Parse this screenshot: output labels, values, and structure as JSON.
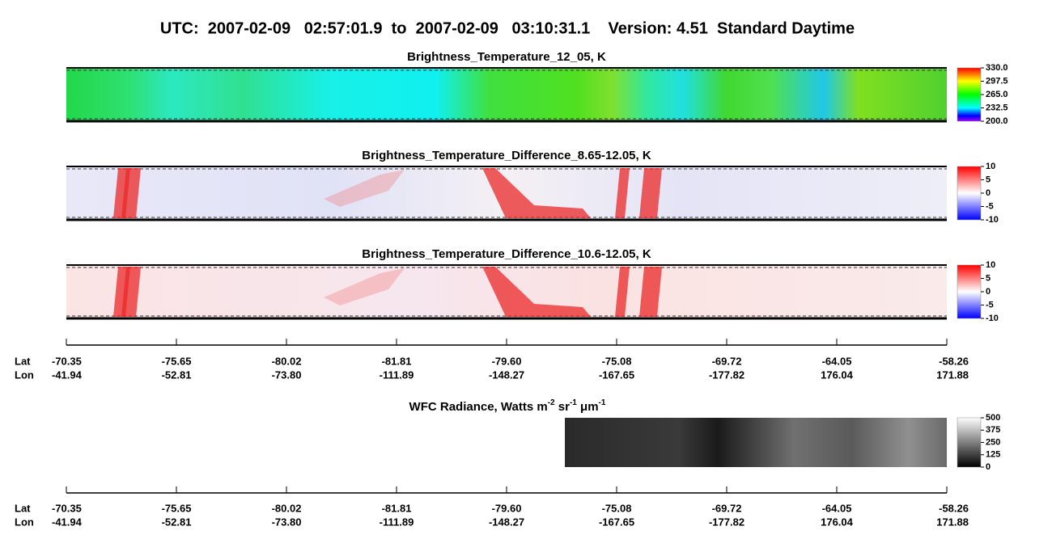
{
  "title": "UTC:  2007-02-09   02:57:01.9  to  2007-02-09   03:10:31.1    Version: 4.51  Standard Daytime",
  "panels": [
    {
      "title": "Brightness_Temperature_12_05, K",
      "colorbar": [
        "330.0",
        "297.5",
        "265.0",
        "232.5",
        "200.0"
      ]
    },
    {
      "title": "Brightness_Temperature_Difference_8.65-12.05, K",
      "colorbar": [
        "10",
        "5",
        "0",
        "-5",
        "-10"
      ]
    },
    {
      "title": "Brightness_Temperature_Difference_10.6-12.05, K",
      "colorbar": [
        "10",
        "5",
        "0",
        "-5",
        "-10"
      ]
    }
  ],
  "wfc": {
    "title": [
      {
        "text": "WFC Radiance, Watts m",
        "sup": false
      },
      {
        "text": "-2",
        "sup": true
      },
      {
        "text": " sr",
        "sup": false
      },
      {
        "text": "-1",
        "sup": true
      },
      {
        "text": " μm",
        "sup": false
      },
      {
        "text": "-1",
        "sup": true
      }
    ],
    "colorbar": [
      "500",
      "375",
      "250",
      "125",
      "0"
    ]
  },
  "axes": [
    {
      "lat_label": "Lat",
      "lon_label": "Lon",
      "lat": [
        "-70.35",
        "-75.65",
        "-80.02",
        "-81.81",
        "-79.60",
        "-75.08",
        "-69.72",
        "-64.05",
        "-58.26"
      ],
      "lon": [
        "-41.94",
        "-52.81",
        "-73.80",
        "-111.89",
        "-148.27",
        "-167.65",
        "-177.82",
        "176.04",
        "171.88"
      ]
    },
    {
      "lat_label": "Lat",
      "lon_label": "Lon",
      "lat": [
        "-70.35",
        "-75.65",
        "-80.02",
        "-81.81",
        "-79.60",
        "-75.08",
        "-69.72",
        "-64.05",
        "-58.26"
      ],
      "lon": [
        "-41.94",
        "-52.81",
        "-73.80",
        "-111.89",
        "-148.27",
        "-167.65",
        "-177.82",
        "176.04",
        "171.88"
      ]
    }
  ]
}
